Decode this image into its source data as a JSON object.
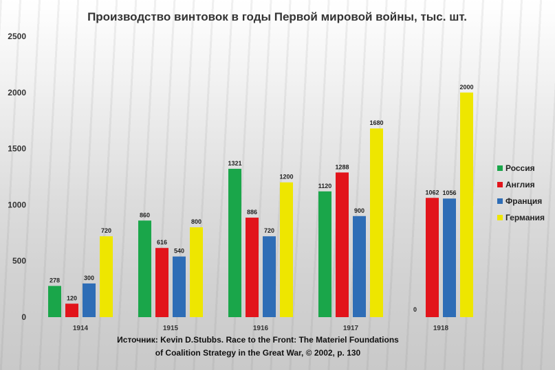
{
  "chart_data": {
    "type": "bar",
    "title": "Производство винтовок в годы Первой мировой войны, тыс. шт.",
    "categories": [
      "1914",
      "1915",
      "1916",
      "1917",
      "1918"
    ],
    "series": [
      {
        "name": "Россия",
        "color": "#1aa64a",
        "values": [
          278,
          860,
          1321,
          1120,
          0
        ]
      },
      {
        "name": "Англия",
        "color": "#e2141b",
        "values": [
          120,
          616,
          886,
          1288,
          1062
        ]
      },
      {
        "name": "Франция",
        "color": "#2e6db6",
        "values": [
          300,
          540,
          720,
          900,
          1056
        ]
      },
      {
        "name": "Германия",
        "color": "#eee600",
        "values": [
          720,
          800,
          1200,
          1680,
          2000
        ]
      }
    ],
    "ylim": [
      0,
      2500
    ],
    "yticks": [
      0,
      500,
      1000,
      1500,
      2000,
      2500
    ],
    "legend_position": "right",
    "grid": false
  },
  "source_line1": "Источник: Kevin D.Stubbs. Race to the Front: The Materiel Foundations",
  "source_line2": "of Coalition Strategy in the Great War, © 2002, p. 130"
}
